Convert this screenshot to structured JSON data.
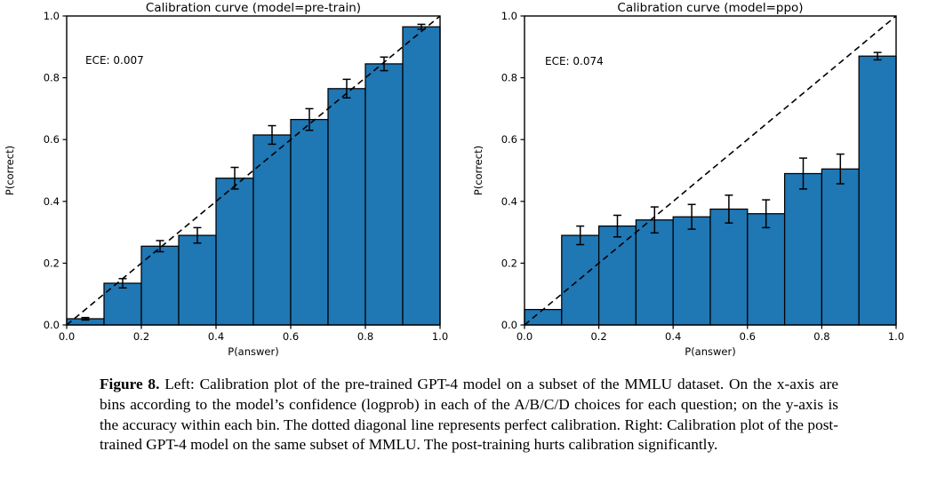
{
  "figure": {
    "caption_label": "Figure 8.",
    "caption_text": "Left: Calibration plot of the pre-trained GPT-4 model on a subset of the MMLU dataset. On the x-axis are bins according to the model’s confidence (logprob) in each of the A/B/C/D choices for each question; on the y-axis is the accuracy within each bin. The dotted diagonal line represents perfect calibration. Right: Calibration plot of the post-trained GPT-4 model on the same subset of MMLU. The post-training hurts calibration significantly."
  },
  "chart_data": [
    {
      "type": "bar",
      "title": "Calibration curve (model=pre-train)",
      "annotation": "ECE: 0.007",
      "xlabel": "P(answer)",
      "ylabel": "P(correct)",
      "xlim": [
        0,
        1
      ],
      "ylim": [
        0,
        1
      ],
      "grid": false,
      "legend": "none",
      "diagonal_reference_line": true,
      "bin_edges": [
        0.0,
        0.1,
        0.2,
        0.3,
        0.4,
        0.5,
        0.6,
        0.7,
        0.8,
        0.9,
        1.0
      ],
      "values": [
        0.02,
        0.135,
        0.255,
        0.29,
        0.475,
        0.615,
        0.665,
        0.765,
        0.845,
        0.965
      ],
      "errors": [
        0.004,
        0.015,
        0.018,
        0.025,
        0.035,
        0.03,
        0.035,
        0.03,
        0.022,
        0.008
      ],
      "xticks": [
        "0.0",
        "0.2",
        "0.4",
        "0.6",
        "0.8",
        "1.0"
      ],
      "yticks": [
        "0.0",
        "0.2",
        "0.4",
        "0.6",
        "0.8",
        "1.0"
      ],
      "bar_color": "#1f77b4",
      "edge_color": "#000000",
      "line_color": "#000000"
    },
    {
      "type": "bar",
      "title": "Calibration curve (model=ppo)",
      "annotation": "ECE: 0.074",
      "xlabel": "P(answer)",
      "ylabel": "P(correct)",
      "xlim": [
        0,
        1
      ],
      "ylim": [
        0,
        1
      ],
      "grid": false,
      "legend": "none",
      "diagonal_reference_line": true,
      "bin_edges": [
        0.0,
        0.1,
        0.2,
        0.3,
        0.4,
        0.5,
        0.6,
        0.7,
        0.8,
        0.9,
        1.0
      ],
      "values": [
        0.05,
        0.29,
        0.32,
        0.34,
        0.35,
        0.375,
        0.36,
        0.49,
        0.505,
        0.87
      ],
      "errors": [
        0,
        0.03,
        0.035,
        0.042,
        0.04,
        0.045,
        0.045,
        0.05,
        0.048,
        0.012
      ],
      "xticks": [
        "0.0",
        "0.2",
        "0.4",
        "0.6",
        "0.8",
        "1.0"
      ],
      "yticks": [
        "0.0",
        "0.2",
        "0.4",
        "0.6",
        "0.8",
        "1.0"
      ],
      "bar_color": "#1f77b4",
      "edge_color": "#000000",
      "line_color": "#000000"
    }
  ]
}
